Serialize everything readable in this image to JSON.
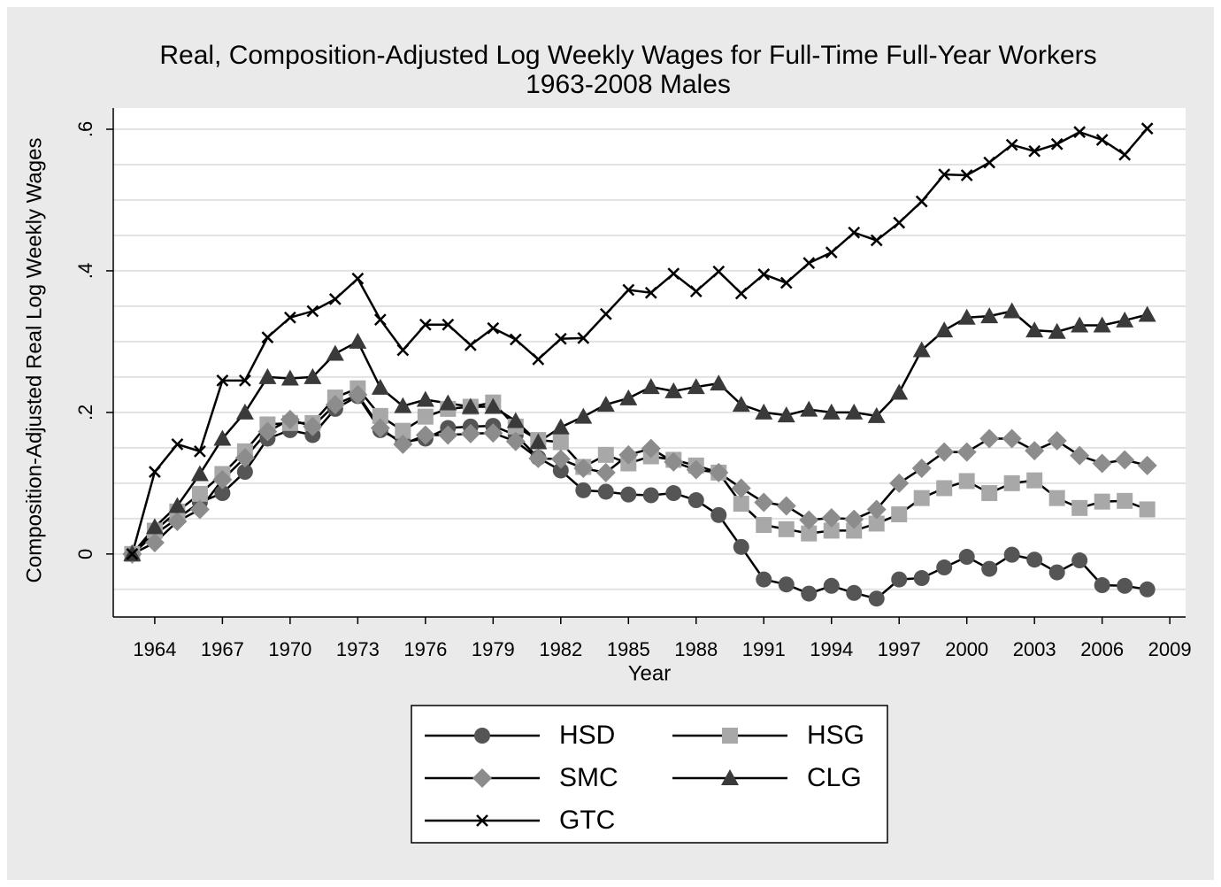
{
  "chart_data": {
    "type": "line",
    "title": "Real, Composition-Adjusted Log Weekly Wages for Full-Time Full-Year Workers",
    "subtitle": "1963-2008 Males",
    "x_label": "Year",
    "y_label": "Composition-Adjusted Real Log Weekly Wages",
    "x": [
      1963,
      1964,
      1965,
      1966,
      1967,
      1968,
      1969,
      1970,
      1971,
      1972,
      1973,
      1974,
      1975,
      1976,
      1977,
      1978,
      1979,
      1980,
      1981,
      1982,
      1983,
      1984,
      1985,
      1986,
      1987,
      1988,
      1989,
      1990,
      1991,
      1992,
      1993,
      1994,
      1995,
      1996,
      1997,
      1998,
      1999,
      2000,
      2001,
      2002,
      2003,
      2004,
      2005,
      2006,
      2007,
      2008
    ],
    "xlim": [
      1962.16,
      2009.7
    ],
    "xticks": [
      1964,
      1967,
      1970,
      1973,
      1976,
      1979,
      1982,
      1985,
      1988,
      1991,
      1994,
      1997,
      2000,
      2003,
      2006,
      2009
    ],
    "ylim": [
      -0.089,
      0.63
    ],
    "yticks": [
      0,
      {
        "value": 0.2,
        "label": ".2"
      },
      {
        "value": 0.4,
        "label": ".4"
      },
      {
        "value": 0.6,
        "label": ".6"
      }
    ],
    "grid_values": [
      -0.05,
      0,
      0.05,
      0.1,
      0.15,
      0.2,
      0.25,
      0.3,
      0.35,
      0.4,
      0.45,
      0.5,
      0.55,
      0.6
    ],
    "grid": true,
    "legend_position": "bottom",
    "series": [
      {
        "name": "HSD",
        "color": "#555555",
        "marker": "circle",
        "values": [
          0,
          0.028,
          0.05,
          0.073,
          0.086,
          0.116,
          0.163,
          0.175,
          0.168,
          0.205,
          0.223,
          0.175,
          0.158,
          0.163,
          0.178,
          0.18,
          0.181,
          0.168,
          0.136,
          0.118,
          0.09,
          0.088,
          0.084,
          0.083,
          0.086,
          0.076,
          0.055,
          0.01,
          -0.036,
          -0.043,
          -0.056,
          -0.045,
          -0.055,
          -0.063,
          -0.036,
          -0.034,
          -0.019,
          -0.004,
          -0.021,
          -0.001,
          -0.008,
          -0.026,
          -0.009,
          -0.044,
          -0.045,
          -0.05
        ]
      },
      {
        "name": "HSG",
        "color": "#a8a8a8",
        "marker": "square",
        "values": [
          0,
          0.033,
          0.06,
          0.085,
          0.113,
          0.145,
          0.183,
          0.185,
          0.185,
          0.221,
          0.234,
          0.195,
          0.174,
          0.194,
          0.205,
          0.208,
          0.214,
          0.18,
          0.161,
          0.158,
          0.123,
          0.14,
          0.128,
          0.138,
          0.133,
          0.125,
          0.115,
          0.071,
          0.041,
          0.035,
          0.029,
          0.033,
          0.033,
          0.043,
          0.056,
          0.079,
          0.093,
          0.103,
          0.086,
          0.1,
          0.104,
          0.079,
          0.065,
          0.074,
          0.075,
          0.063
        ]
      },
      {
        "name": "SMC",
        "color": "#8c8c8c",
        "marker": "diamond",
        "values": [
          0,
          0.016,
          0.046,
          0.063,
          0.105,
          0.136,
          0.173,
          0.19,
          0.18,
          0.211,
          0.225,
          0.178,
          0.155,
          0.168,
          0.168,
          0.17,
          0.171,
          0.159,
          0.135,
          0.134,
          0.121,
          0.115,
          0.14,
          0.149,
          0.13,
          0.119,
          0.115,
          0.093,
          0.073,
          0.068,
          0.048,
          0.051,
          0.049,
          0.063,
          0.1,
          0.121,
          0.144,
          0.144,
          0.163,
          0.163,
          0.146,
          0.16,
          0.139,
          0.128,
          0.133,
          0.125
        ]
      },
      {
        "name": "CLG",
        "color": "#3a3a3a",
        "marker": "triangle",
        "values": [
          0,
          0.038,
          0.068,
          0.113,
          0.163,
          0.2,
          0.25,
          0.248,
          0.25,
          0.283,
          0.3,
          0.235,
          0.209,
          0.218,
          0.213,
          0.208,
          0.208,
          0.188,
          0.158,
          0.179,
          0.194,
          0.211,
          0.22,
          0.236,
          0.23,
          0.236,
          0.241,
          0.211,
          0.2,
          0.196,
          0.204,
          0.2,
          0.2,
          0.195,
          0.228,
          0.288,
          0.316,
          0.334,
          0.336,
          0.343,
          0.316,
          0.314,
          0.323,
          0.323,
          0.33,
          0.338
        ]
      },
      {
        "name": "GTC",
        "color": "#000000",
        "marker": "x",
        "values": [
          0,
          0.116,
          0.155,
          0.145,
          0.245,
          0.245,
          0.306,
          0.334,
          0.343,
          0.36,
          0.389,
          0.331,
          0.288,
          0.324,
          0.324,
          0.295,
          0.319,
          0.303,
          0.275,
          0.304,
          0.305,
          0.339,
          0.373,
          0.369,
          0.396,
          0.371,
          0.399,
          0.368,
          0.395,
          0.383,
          0.411,
          0.426,
          0.454,
          0.443,
          0.468,
          0.498,
          0.536,
          0.535,
          0.553,
          0.578,
          0.569,
          0.579,
          0.596,
          0.585,
          0.564,
          0.601
        ]
      }
    ]
  }
}
